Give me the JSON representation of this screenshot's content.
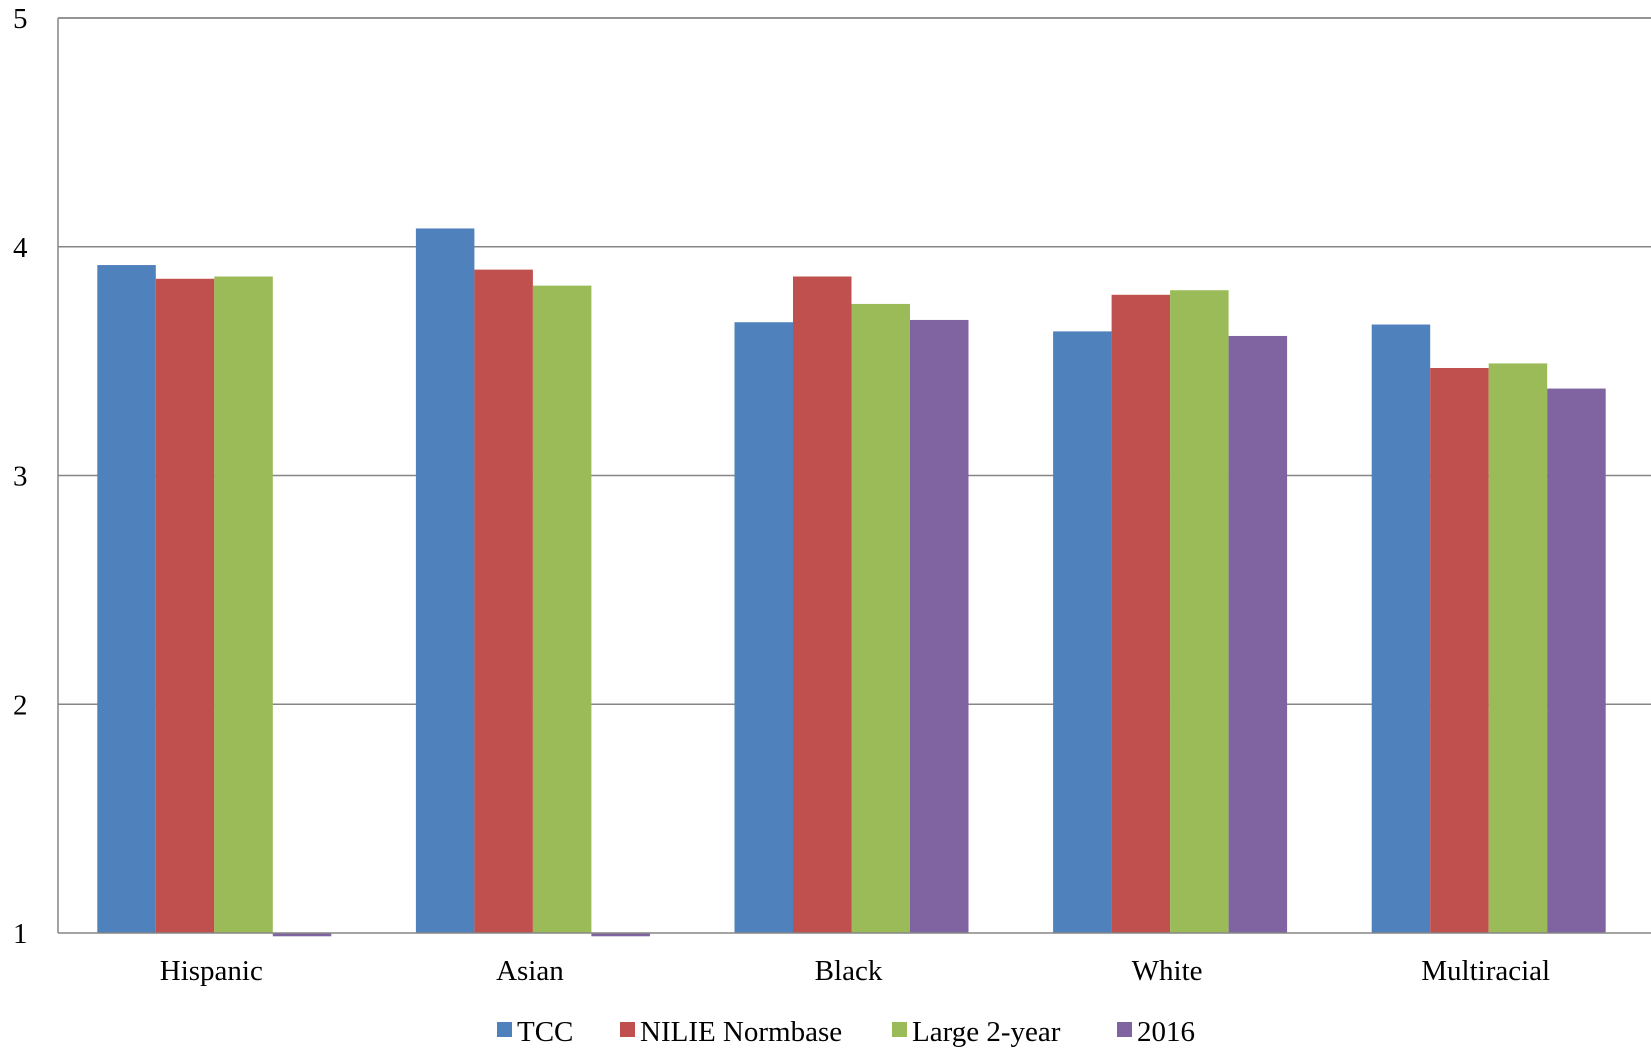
{
  "chart_data": {
    "type": "bar",
    "title": "",
    "xlabel": "",
    "ylabel": "",
    "categories": [
      "Hispanic",
      "Asian",
      "Black",
      "White",
      "Multiracial"
    ],
    "series": [
      {
        "name": "TCC",
        "color": "#4f81bd",
        "values": [
          3.92,
          4.08,
          3.67,
          3.63,
          3.66
        ]
      },
      {
        "name": "NILIE Normbase",
        "color": "#c0504d",
        "values": [
          3.86,
          3.9,
          3.87,
          3.79,
          3.47
        ]
      },
      {
        "name": "Large 2-year",
        "color": "#9bbb59",
        "values": [
          3.87,
          3.83,
          3.75,
          3.81,
          3.49
        ]
      },
      {
        "name": "2016",
        "color": "#8064a2",
        "values": [
          0.99,
          0.99,
          3.68,
          3.61,
          3.38
        ]
      }
    ],
    "ylim": [
      1,
      5
    ],
    "yticks": [
      "1",
      "2",
      "3",
      "4",
      "5"
    ],
    "grid": true,
    "legend_position": "bottom"
  }
}
